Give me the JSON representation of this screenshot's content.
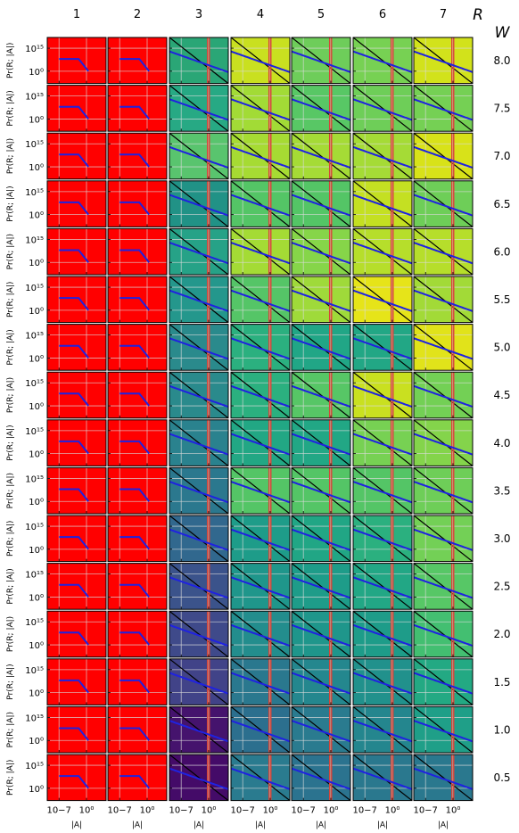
{
  "chart_data": {
    "type": "line",
    "title": "",
    "column_axis_symbol": "R",
    "row_axis_symbol": "W",
    "columns": [
      "1",
      "2",
      "3",
      "4",
      "5",
      "6",
      "7"
    ],
    "rows": [
      "8.0",
      "7.5",
      "7.0",
      "6.5",
      "6.0",
      "5.5",
      "5.0",
      "4.5",
      "4.0",
      "3.5",
      "3.0",
      "2.5",
      "2.0",
      "1.5",
      "1.0",
      "0.5"
    ],
    "xlabel": "|A|",
    "ylabel": "Pr(R; |A|)",
    "x_scale": "log",
    "y_scale": "log",
    "xlim": [
      1e-10,
      100000.0
    ],
    "ylim": [
      1e-08,
      1e+22
    ],
    "x_tick_labels": [
      "10−7",
      "10⁰"
    ],
    "y_tick_labels": [
      "10¹⁵",
      "10⁰"
    ],
    "x_ticks": [
      1e-07,
      1
    ],
    "y_ticks": [
      1000000000000000.0,
      1
    ],
    "grid": true,
    "reference_line_color": "#000000",
    "curve_color": "#1f22e0",
    "vertical_marker_color": "#d6453a",
    "vertical_marker_x_ranges": {
      "1": null,
      "2": null,
      "3": [
        0.5,
        1.5
      ],
      "4": [
        0.5,
        1.5
      ],
      "5": [
        0.5,
        1.5
      ],
      "6": [
        0.5,
        1.5
      ],
      "7": [
        0.5,
        1.5
      ]
    },
    "background_colors": {
      "1": "#ff0000",
      "2": "#ff0000",
      "3": [
        "#2aa676",
        "#27a984",
        "#59c46e",
        "#219286",
        "#26a287",
        "#24978c",
        "#2a8a8c",
        "#2a8a8c",
        "#2a828e",
        "#2b788e",
        "#31688e",
        "#3b538b",
        "#3f4a8a",
        "#414388",
        "#45136d",
        "#440b68"
      ],
      "4": [
        "#c9e020",
        "#a2db36",
        "#a6db33",
        "#54c566",
        "#a4db35",
        "#55c567",
        "#2bb07f",
        "#2bb07f",
        "#22a784",
        "#54c566",
        "#1e9c89",
        "#1f968b",
        "#238d8d",
        "#2a788e",
        "#2c6f8e",
        "#2a7b8f"
      ],
      "5": [
        "#6ecd5a",
        "#58c765",
        "#a5db36",
        "#54c566",
        "#86d549",
        "#9fda3a",
        "#21a686",
        "#57c666",
        "#22a785",
        "#54c566",
        "#21a685",
        "#1e9c89",
        "#1f968b",
        "#24878e",
        "#2a7b8f",
        "#2b738f"
      ],
      "6": [
        "#77d153",
        "#6ece58",
        "#a5db36",
        "#c4e022",
        "#b6de2b",
        "#e6e419",
        "#22a785",
        "#c9e020",
        "#77d153",
        "#54c566",
        "#2bb07f",
        "#22a785",
        "#1e9c89",
        "#21918c",
        "#24868e",
        "#2a788e"
      ],
      "7": [
        "#d2e21b",
        "#75d054",
        "#d8e219",
        "#6ece58",
        "#b6de2b",
        "#a2da37",
        "#e1e31a",
        "#73d055",
        "#84d44b",
        "#6ece58",
        "#73d056",
        "#57c766",
        "#43bf71",
        "#23a983",
        "#1f9f88",
        "#2a788e"
      ]
    }
  }
}
